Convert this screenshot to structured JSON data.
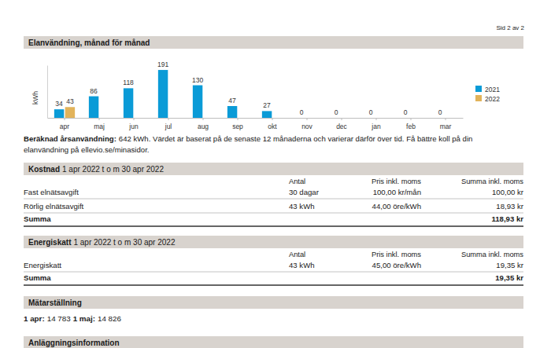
{
  "page_label": "Sid 2 av 2",
  "usage_section": {
    "title": "Elanvändning, månad för månad"
  },
  "chart_data": {
    "type": "bar",
    "categories": [
      "apr",
      "maj",
      "jun",
      "jul",
      "aug",
      "sep",
      "okt",
      "nov",
      "dec",
      "jan",
      "feb",
      "mar"
    ],
    "series": [
      {
        "name": "2021",
        "color": "#0a9bd7",
        "values": [
          34,
          86,
          118,
          191,
          130,
          47,
          27,
          0,
          0,
          0,
          0,
          0
        ]
      },
      {
        "name": "2022",
        "color": "#e2b35a",
        "values": [
          43,
          null,
          null,
          null,
          null,
          null,
          null,
          null,
          null,
          null,
          null,
          null
        ]
      }
    ],
    "ylabel": "kWh",
    "ylim": [
      0,
      210
    ],
    "yticks": [],
    "data_labels": true,
    "tick_labels": "x",
    "legend": "right"
  },
  "annual_note": {
    "label": "Beräknad årsanvändning:",
    "lines": [
      "642 kWh. Värdet är baserat på de senaste 12 månaderna och varierar därför över tid. Få bättre koll på din",
      "elanvändning på ellevio.se/minasidor."
    ]
  },
  "cost": {
    "title": "Kostnad",
    "period": "1 apr 2022 t o m 30 apr 2022",
    "columns": [
      "Antal",
      "Pris inkl. moms",
      "Summa inkl. moms"
    ],
    "rows": [
      [
        "Fast elnätsavgift",
        "30 dagar",
        "100,00 kr/mån",
        "100,00 kr"
      ],
      [
        "Rörlig elnätsavgift",
        "43 kWh",
        "44,00 öre/kWh",
        "18,93 kr"
      ]
    ],
    "total": [
      "Summa",
      "118,93 kr"
    ]
  },
  "tax": {
    "title": "Energiskatt",
    "period": "1 apr 2022 t o m 30 apr 2022",
    "columns": [
      "Antal",
      "Pris inkl. moms",
      "Summa inkl. moms"
    ],
    "rows": [
      [
        "Energiskatt",
        "43 kWh",
        "45,00 öre/kWh",
        "19,35 kr"
      ]
    ],
    "total": [
      "Summa",
      "19,35 kr"
    ]
  },
  "meter": {
    "title": "Mätarställning",
    "readings": [
      {
        "label": "1 apr:",
        "value": "14 783"
      },
      {
        "label": "1 maj:",
        "value": "14 826"
      }
    ]
  },
  "installation": {
    "title": "Anläggningsinformation"
  }
}
